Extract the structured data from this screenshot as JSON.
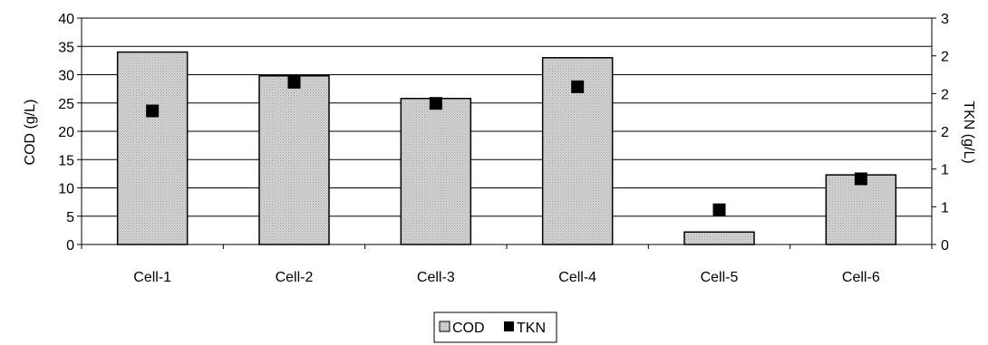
{
  "chart_data": {
    "type": "bar",
    "categories": [
      "Cell-1",
      "Cell-2",
      "Cell-3",
      "Cell-4",
      "Cell-5",
      "Cell-6"
    ],
    "series": [
      {
        "name": "COD",
        "type": "bar",
        "axis": "left",
        "values": [
          34,
          29.8,
          25.8,
          33,
          2.2,
          12.3
        ]
      },
      {
        "name": "TKN",
        "type": "marker",
        "axis": "right",
        "values": [
          1.77,
          2.15,
          1.87,
          2.09,
          0.46,
          0.87
        ]
      }
    ],
    "ylabel": "COD (g/L)",
    "y2label": "TKN (g/L)",
    "ylim": [
      0,
      40
    ],
    "y2lim": [
      0,
      3
    ],
    "yticks": [
      "0",
      "5",
      "10",
      "15",
      "20",
      "25",
      "30",
      "35",
      "40"
    ],
    "y2ticks": [
      "0",
      "1",
      "1",
      "2",
      "2",
      "2",
      "3"
    ],
    "grid": true,
    "legend_position": "bottom-center",
    "colors": {
      "bar_fill": "#c6c6c6",
      "bar_stroke": "#000000",
      "marker": "#000000",
      "grid": "#000000"
    }
  }
}
